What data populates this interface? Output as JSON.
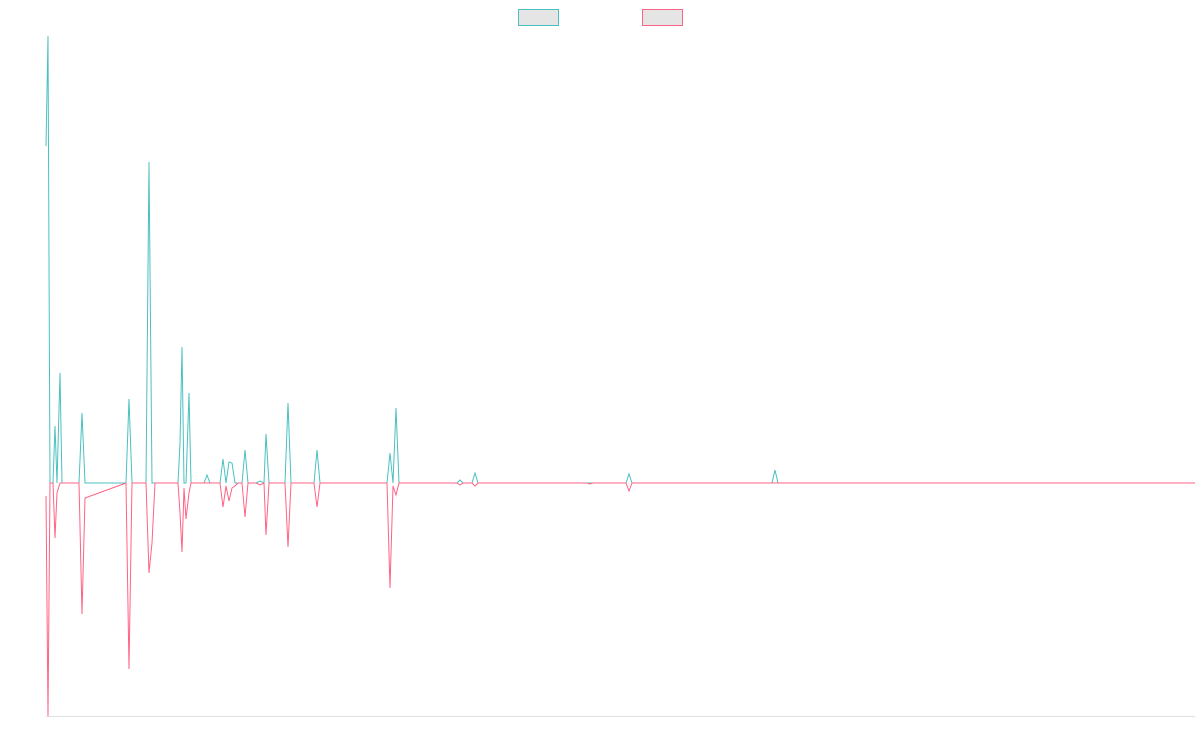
{
  "chart_data": {
    "type": "line",
    "x": [
      46,
      48,
      50,
      53,
      55,
      57,
      60,
      62,
      79,
      82,
      85,
      126,
      129,
      132,
      146,
      149,
      152,
      155,
      178,
      180,
      182,
      184,
      186,
      189,
      191,
      204,
      207,
      210,
      220,
      223,
      226,
      229,
      232,
      235,
      238,
      242,
      245,
      248,
      256,
      260,
      264,
      266,
      269,
      285,
      288,
      291,
      314,
      317,
      320,
      387,
      390,
      393,
      396,
      399,
      457,
      460,
      463,
      472,
      475,
      478,
      587,
      590,
      593,
      626,
      629,
      632,
      772,
      775,
      778,
      1195
    ],
    "series": [
      {
        "color": "#4bc0c0",
        "values": [
          337,
          447,
          0,
          0,
          57,
          0,
          110,
          0,
          0,
          70,
          0,
          0,
          84,
          0,
          0,
          321,
          0,
          0,
          0,
          40,
          136,
          0,
          0,
          90,
          0,
          0,
          8,
          0,
          0,
          24,
          0,
          21,
          20,
          0,
          0,
          0,
          33,
          0,
          0,
          2,
          0,
          49,
          0,
          0,
          80,
          0,
          0,
          33,
          0,
          0,
          30,
          0,
          75,
          0,
          0,
          3,
          0,
          0,
          10,
          0,
          0,
          0,
          0,
          0,
          9,
          0,
          0,
          13,
          0,
          0
        ]
      },
      {
        "color": "#ff6384",
        "values": [
          -13,
          -233,
          0,
          0,
          -55,
          -10,
          0,
          0,
          0,
          -131,
          -15,
          0,
          -186,
          0,
          0,
          -90,
          -60,
          0,
          0,
          -30,
          -69,
          -5,
          -36,
          -10,
          0,
          0,
          0,
          0,
          0,
          -24,
          -3,
          -18,
          -5,
          -3,
          0,
          0,
          -34,
          0,
          0,
          -2,
          0,
          -52,
          0,
          0,
          -64,
          0,
          0,
          -24,
          0,
          0,
          -105,
          -3,
          -12,
          0,
          0,
          -2,
          0,
          0,
          -3,
          0,
          0,
          -1,
          0,
          0,
          -8,
          0,
          0,
          0,
          0,
          0
        ]
      }
    ],
    "xlim": [
      46,
      1195
    ],
    "ylim": [
      -233,
      447
    ]
  }
}
